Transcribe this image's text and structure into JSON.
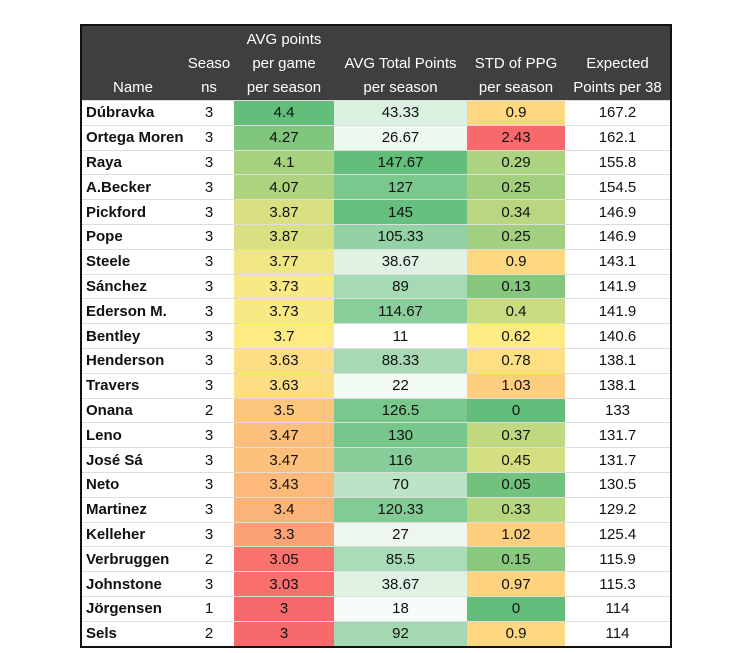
{
  "chart_data": {
    "type": "table",
    "columns": [
      {
        "key": "name",
        "label": [
          "Name"
        ]
      },
      {
        "key": "seasons",
        "label": [
          "Seaso",
          "ns"
        ]
      },
      {
        "key": "avg_ppg",
        "label": [
          "AVG points",
          "per game",
          "per season"
        ]
      },
      {
        "key": "avg_total",
        "label": [
          "AVG Total Points",
          "per season"
        ]
      },
      {
        "key": "std_ppg",
        "label": [
          "STD  of PPG",
          "per season"
        ]
      },
      {
        "key": "expected",
        "label": [
          "Expected",
          "Points per 38"
        ]
      }
    ],
    "rows": [
      {
        "name": "Dúbravka",
        "seasons": "3",
        "avg_ppg": "4.4",
        "avg_total": "43.33",
        "std_ppg": "0.9",
        "expected": "167.2"
      },
      {
        "name": "Ortega Moreno",
        "seasons": "3",
        "avg_ppg": "4.27",
        "avg_total": "26.67",
        "std_ppg": "2.43",
        "expected": "162.1"
      },
      {
        "name": "Raya",
        "seasons": "3",
        "avg_ppg": "4.1",
        "avg_total": "147.67",
        "std_ppg": "0.29",
        "expected": "155.8"
      },
      {
        "name": "A.Becker",
        "seasons": "3",
        "avg_ppg": "4.07",
        "avg_total": "127",
        "std_ppg": "0.25",
        "expected": "154.5"
      },
      {
        "name": "Pickford",
        "seasons": "3",
        "avg_ppg": "3.87",
        "avg_total": "145",
        "std_ppg": "0.34",
        "expected": "146.9"
      },
      {
        "name": "Pope",
        "seasons": "3",
        "avg_ppg": "3.87",
        "avg_total": "105.33",
        "std_ppg": "0.25",
        "expected": "146.9"
      },
      {
        "name": "Steele",
        "seasons": "3",
        "avg_ppg": "3.77",
        "avg_total": "38.67",
        "std_ppg": "0.9",
        "expected": "143.1"
      },
      {
        "name": "Sánchez",
        "seasons": "3",
        "avg_ppg": "3.73",
        "avg_total": "89",
        "std_ppg": "0.13",
        "expected": "141.9"
      },
      {
        "name": "Ederson M.",
        "seasons": "3",
        "avg_ppg": "3.73",
        "avg_total": "114.67",
        "std_ppg": "0.4",
        "expected": "141.9"
      },
      {
        "name": "Bentley",
        "seasons": "3",
        "avg_ppg": "3.7",
        "avg_total": "11",
        "std_ppg": "0.62",
        "expected": "140.6"
      },
      {
        "name": "Henderson",
        "seasons": "3",
        "avg_ppg": "3.63",
        "avg_total": "88.33",
        "std_ppg": "0.78",
        "expected": "138.1"
      },
      {
        "name": "Travers",
        "seasons": "3",
        "avg_ppg": "3.63",
        "avg_total": "22",
        "std_ppg": "1.03",
        "expected": "138.1"
      },
      {
        "name": "Onana",
        "seasons": "2",
        "avg_ppg": "3.5",
        "avg_total": "126.5",
        "std_ppg": "0",
        "expected": "133"
      },
      {
        "name": "Leno",
        "seasons": "3",
        "avg_ppg": "3.47",
        "avg_total": "130",
        "std_ppg": "0.37",
        "expected": "131.7"
      },
      {
        "name": "José Sá",
        "seasons": "3",
        "avg_ppg": "3.47",
        "avg_total": "116",
        "std_ppg": "0.45",
        "expected": "131.7"
      },
      {
        "name": "Neto",
        "seasons": "3",
        "avg_ppg": "3.43",
        "avg_total": "70",
        "std_ppg": "0.05",
        "expected": "130.5"
      },
      {
        "name": "Martinez",
        "seasons": "3",
        "avg_ppg": "3.4",
        "avg_total": "120.33",
        "std_ppg": "0.33",
        "expected": "129.2"
      },
      {
        "name": "Kelleher",
        "seasons": "3",
        "avg_ppg": "3.3",
        "avg_total": "27",
        "std_ppg": "1.02",
        "expected": "125.4"
      },
      {
        "name": "Verbruggen",
        "seasons": "2",
        "avg_ppg": "3.05",
        "avg_total": "85.5",
        "std_ppg": "0.15",
        "expected": "115.9"
      },
      {
        "name": "Johnstone",
        "seasons": "3",
        "avg_ppg": "3.03",
        "avg_total": "38.67",
        "std_ppg": "0.97",
        "expected": "115.3"
      },
      {
        "name": "Jörgensen",
        "seasons": "1",
        "avg_ppg": "3",
        "avg_total": "18",
        "std_ppg": "0",
        "expected": "114"
      },
      {
        "name": "Sels",
        "seasons": "2",
        "avg_ppg": "3",
        "avg_total": "92",
        "std_ppg": "0.9",
        "expected": "114"
      }
    ],
    "color_scales": {
      "avg_ppg": {
        "low": "#f8696b",
        "mid": "#ffeb84",
        "high": "#63be7b",
        "min": 3,
        "mid_value": 3.7,
        "max": 4.4
      },
      "avg_total": {
        "low": "#ffffff",
        "high": "#63be7b",
        "min": 11,
        "max": 147.67
      },
      "std_ppg": {
        "low": "#63be7b",
        "mid": "#ffeb84",
        "high": "#f8696b",
        "min": 0,
        "mid_value": 0.62,
        "max": 2.43
      }
    },
    "header_bg": "#3f3f3f",
    "header_fg": "#ffffff"
  }
}
